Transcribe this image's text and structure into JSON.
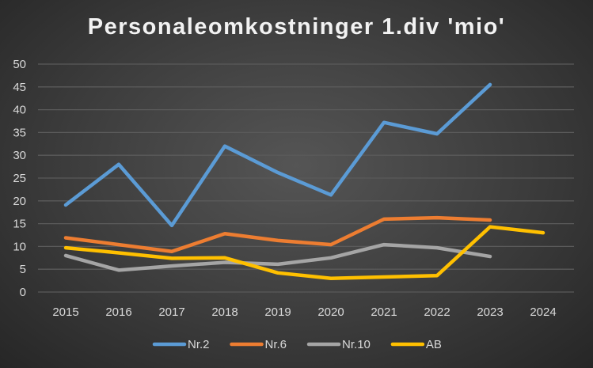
{
  "chart_data": {
    "type": "line",
    "title": "Personaleomkostninger 1.div 'mio'",
    "xlabel": "",
    "ylabel": "",
    "ylim": [
      0,
      50
    ],
    "yticks": [
      "0",
      "5",
      "10",
      "15",
      "20",
      "25",
      "30",
      "35",
      "40",
      "45",
      "50"
    ],
    "categories": [
      "2015",
      "2016",
      "2017",
      "2018",
      "2019",
      "2020",
      "2021",
      "2022",
      "2023",
      "2024"
    ],
    "grid": true,
    "legend_position": "bottom",
    "series": [
      {
        "name": "Nr.2",
        "color": "#5b9bd5",
        "values": [
          19.1,
          28.0,
          14.6,
          32.0,
          26.2,
          21.3,
          37.2,
          34.7,
          45.5,
          null
        ]
      },
      {
        "name": "Nr.6",
        "color": "#ed7d31",
        "values": [
          11.9,
          10.4,
          8.9,
          12.8,
          11.3,
          10.4,
          16.0,
          16.3,
          15.8,
          null
        ]
      },
      {
        "name": "Nr.10",
        "color": "#a5a5a5",
        "values": [
          8.0,
          4.8,
          5.7,
          6.5,
          6.1,
          7.5,
          10.4,
          9.7,
          7.8,
          null
        ]
      },
      {
        "name": "AB",
        "color": "#ffc000",
        "values": [
          9.7,
          8.6,
          7.4,
          7.5,
          4.2,
          3.0,
          3.3,
          3.6,
          14.3,
          13.0
        ]
      }
    ]
  }
}
